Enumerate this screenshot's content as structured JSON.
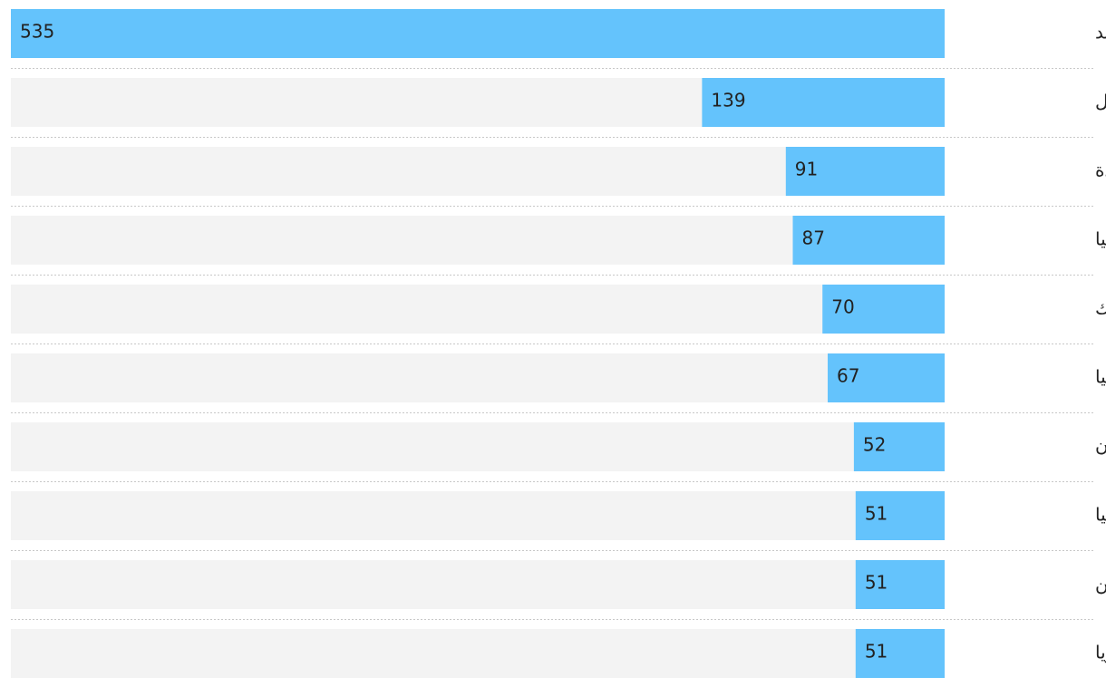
{
  "chart_data": {
    "type": "bar",
    "orientation": "horizontal",
    "direction": "rtl",
    "categories": [
      "الهند",
      "البرازيل",
      "الولايات المتحدة",
      "إندونيسيا",
      "المكسيك",
      "روسيا",
      "باكستان",
      "ألمانيا",
      "الفلبين",
      "نيجيريا"
    ],
    "values": [
      535,
      139,
      91,
      87,
      70,
      67,
      52,
      51,
      51,
      51
    ],
    "color": "#64c3fc",
    "track_color": "#f3f3f3"
  }
}
